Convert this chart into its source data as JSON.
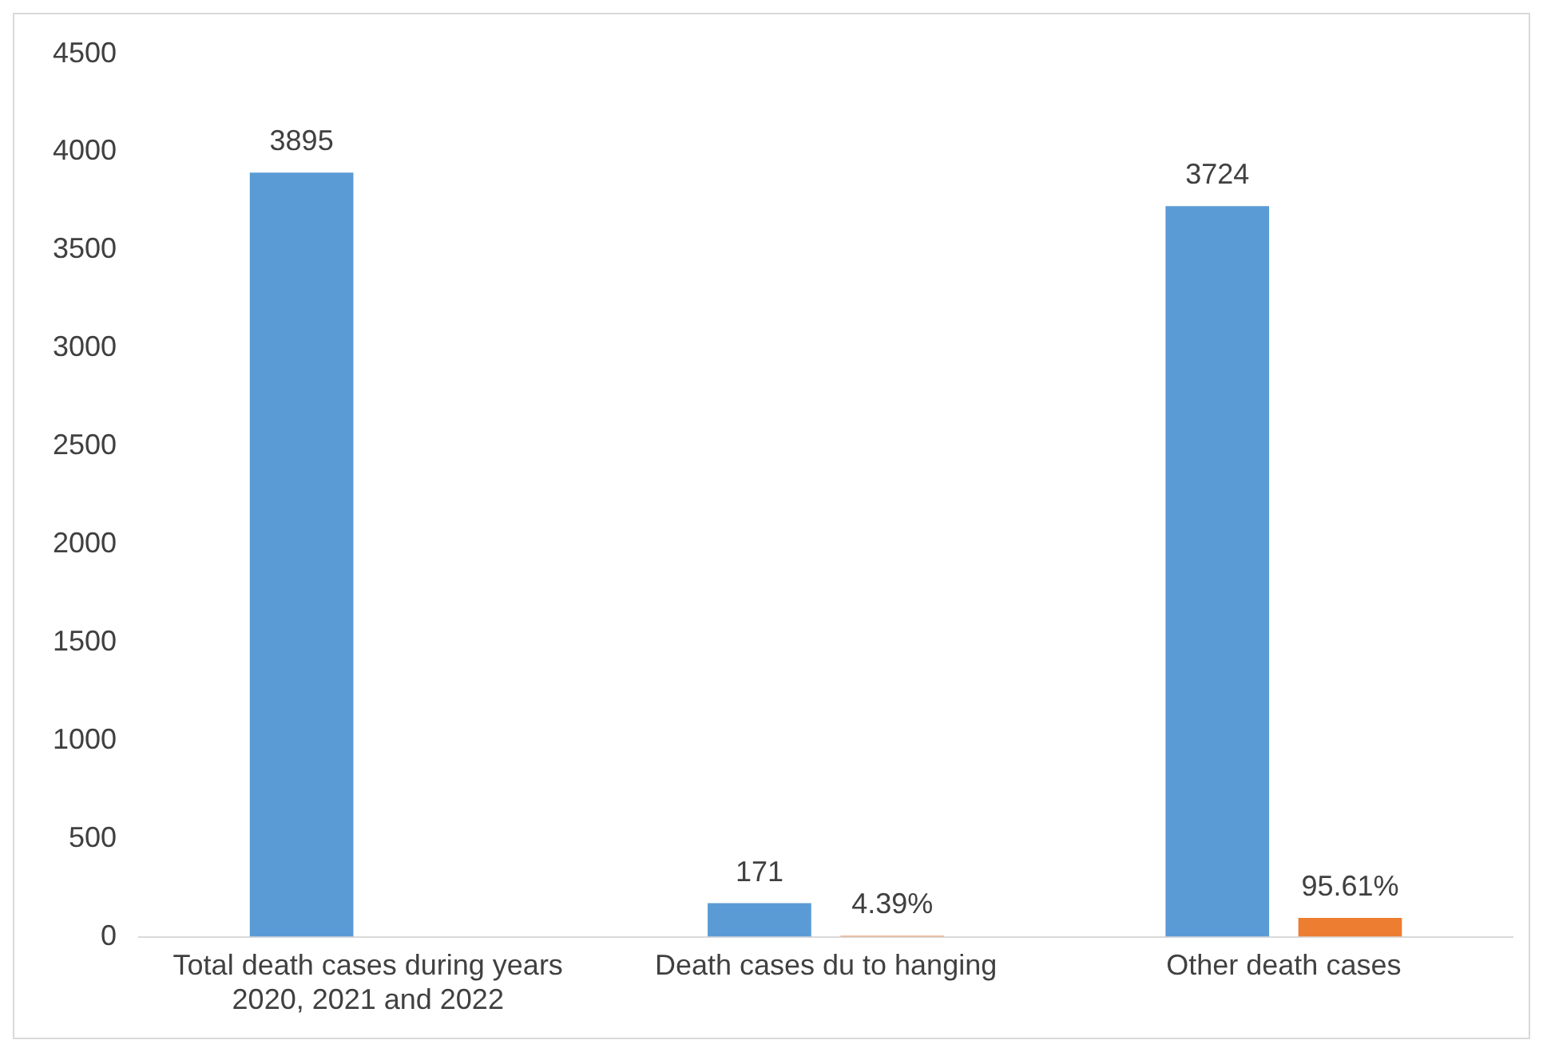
{
  "chart_data": {
    "type": "bar",
    "categories": [
      "Total death cases during years 2020, 2021 and 2022",
      "Death cases du to hanging",
      "Other death cases"
    ],
    "series": [
      {
        "color": "#5b9bd5",
        "values": [
          3895,
          171,
          3724
        ],
        "value_labels": [
          "3895",
          "171",
          "3724"
        ]
      },
      {
        "color": "#ed7d31",
        "values": [
          null,
          4.39,
          95.61
        ],
        "value_labels": [
          null,
          "4.39%",
          "95.61%"
        ]
      }
    ],
    "ylim": [
      0,
      4500
    ],
    "yticks": [
      0,
      500,
      1000,
      1500,
      2000,
      2500,
      3000,
      3500,
      4000,
      4500
    ],
    "grid": false,
    "legend": false
  }
}
